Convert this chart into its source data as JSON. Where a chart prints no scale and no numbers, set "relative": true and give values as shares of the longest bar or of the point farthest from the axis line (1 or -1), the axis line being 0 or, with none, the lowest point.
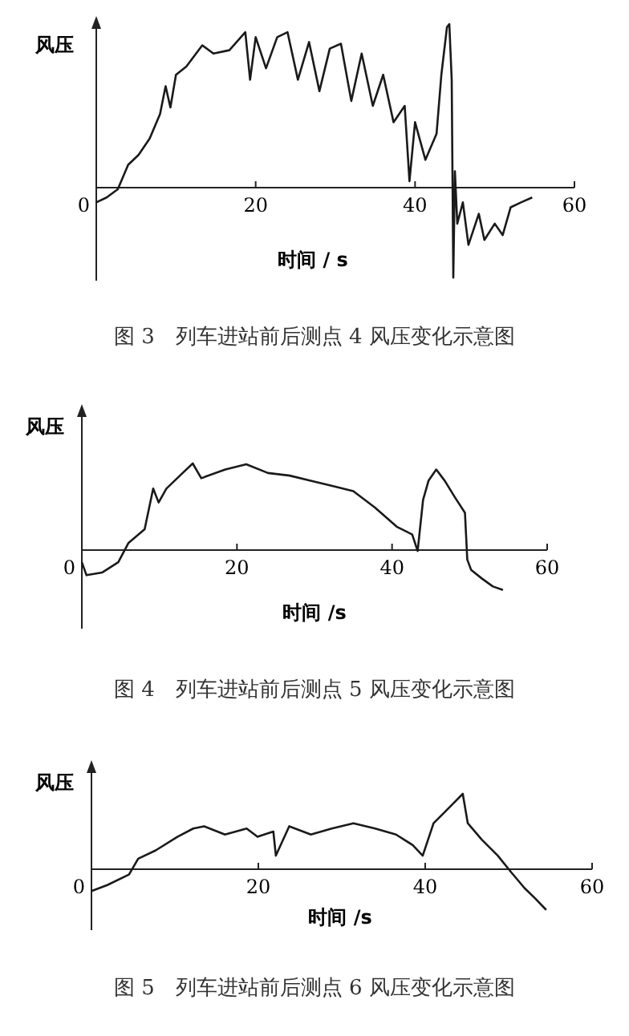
{
  "chart_data": [
    {
      "type": "line",
      "relative": true,
      "title": "图 3　列车进站前后测点 4 风压变化示意图",
      "xlabel": "时间 / s",
      "ylabel": "风压",
      "xlim": [
        0,
        60
      ],
      "xticks": [
        0,
        20,
        40,
        60
      ],
      "grid": false,
      "marker": "none",
      "line_style": "solid",
      "x": [
        0,
        1.3,
        2.7,
        4,
        5.3,
        6.7,
        8,
        8.7,
        9.3,
        10,
        11.3,
        13.3,
        14.7,
        16.7,
        18.7,
        19.3,
        20,
        21.3,
        22.7,
        24,
        25.3,
        26.7,
        28,
        29.3,
        30.7,
        32,
        33.3,
        34.7,
        36,
        37.3,
        38.7,
        39.3,
        40,
        41.3,
        42.7,
        43.3,
        44,
        44.3,
        44.6,
        44.8,
        45,
        45.3,
        46,
        46.7,
        48,
        48.7,
        50,
        51,
        52,
        53.3,
        54.7
      ],
      "series": [
        {
          "color": "#1a1a1a",
          "values": [
            -0.09,
            -0.06,
            -0.01,
            0.14,
            0.2,
            0.3,
            0.45,
            0.62,
            0.49,
            0.69,
            0.74,
            0.87,
            0.82,
            0.84,
            0.95,
            0.66,
            0.92,
            0.73,
            0.92,
            0.95,
            0.66,
            0.89,
            0.59,
            0.85,
            0.88,
            0.53,
            0.82,
            0.5,
            0.69,
            0.4,
            0.5,
            0.04,
            0.4,
            0.17,
            0.33,
            0.69,
            0.98,
            1,
            0.66,
            -0.55,
            0.1,
            -0.22,
            -0.09,
            -0.35,
            -0.16,
            -0.32,
            -0.22,
            -0.29,
            -0.12,
            -0.09,
            -0.06
          ]
        }
      ]
    },
    {
      "type": "line",
      "relative": true,
      "title": "图 4　列车进站前后测点 5 风压变化示意图",
      "xlabel": "时间 /s",
      "ylabel": "风压",
      "xlim": [
        0,
        60
      ],
      "xticks": [
        0,
        20,
        40,
        60
      ],
      "grid": false,
      "marker": "none",
      "line_style": "solid",
      "x": [
        0,
        0.6,
        2.6,
        4.7,
        6,
        8.1,
        9.2,
        9.9,
        10.9,
        13,
        14.3,
        15.4,
        18.5,
        21.2,
        24,
        26.8,
        29.5,
        32.3,
        35,
        37.8,
        40.6,
        42.6,
        43.3,
        44,
        44.7,
        45.7,
        46.8,
        48.1,
        49.4,
        49.7,
        50.2,
        51.6,
        53,
        54.3
      ],
      "series": [
        {
          "color": "#1a1a1a",
          "values": [
            -0.14,
            -0.29,
            -0.26,
            -0.14,
            0.08,
            0.24,
            0.71,
            0.55,
            0.71,
            0.89,
            1,
            0.83,
            0.93,
            0.99,
            0.89,
            0.86,
            0.8,
            0.74,
            0.68,
            0.49,
            0.27,
            0.18,
            -0.01,
            0.58,
            0.8,
            0.93,
            0.8,
            0.61,
            0.43,
            -0.11,
            -0.23,
            -0.33,
            -0.42,
            -0.46
          ]
        }
      ]
    },
    {
      "type": "line",
      "relative": true,
      "title": "图 5　列车进站前后测点 6 风压变化示意图",
      "xlabel": "时间 /s",
      "ylabel": "风压",
      "xlim": [
        0,
        60
      ],
      "xticks": [
        0,
        20,
        40,
        60
      ],
      "grid": false,
      "marker": "none",
      "line_style": "solid",
      "x": [
        0,
        1.9,
        4.5,
        5.6,
        7.7,
        10.3,
        12.2,
        13.5,
        16,
        18.6,
        19.9,
        21.8,
        22.1,
        23.7,
        26.3,
        28.8,
        31.4,
        34,
        36.5,
        38.5,
        39.7,
        41,
        42.9,
        44.5,
        45.1,
        46.8,
        48.7,
        50.3,
        51.9,
        53.2,
        54.5
      ],
      "series": [
        {
          "color": "#1a1a1a",
          "values": [
            -0.29,
            -0.21,
            -0.07,
            0.14,
            0.25,
            0.43,
            0.54,
            0.57,
            0.46,
            0.54,
            0.43,
            0.5,
            0.18,
            0.57,
            0.46,
            0.54,
            0.61,
            0.54,
            0.46,
            0.32,
            0.18,
            0.61,
            0.82,
            1,
            0.61,
            0.39,
            0.18,
            -0.04,
            -0.25,
            -0.39,
            -0.54
          ]
        }
      ]
    }
  ]
}
